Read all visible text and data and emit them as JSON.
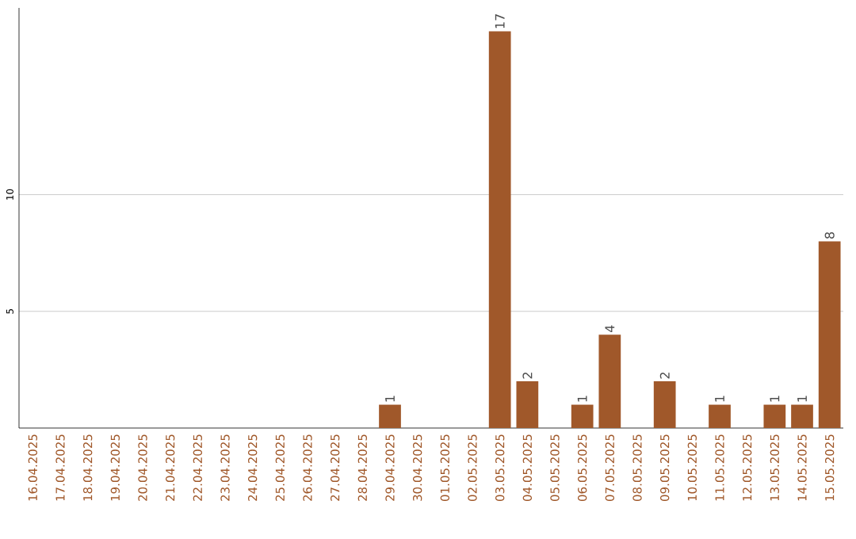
{
  "chart_data": {
    "type": "bar",
    "categories": [
      "16.04.2025",
      "17.04.2025",
      "18.04.2025",
      "19.04.2025",
      "20.04.2025",
      "21.04.2025",
      "22.04.2025",
      "23.04.2025",
      "24.04.2025",
      "25.04.2025",
      "26.04.2025",
      "27.04.2025",
      "28.04.2025",
      "29.04.2025",
      "30.04.2025",
      "01.05.2025",
      "02.05.2025",
      "03.05.2025",
      "04.05.2025",
      "05.05.2025",
      "06.05.2025",
      "07.05.2025",
      "08.05.2025",
      "09.05.2025",
      "10.05.2025",
      "11.05.2025",
      "12.05.2025",
      "13.05.2025",
      "14.05.2025",
      "15.05.2025"
    ],
    "values": [
      0,
      0,
      0,
      0,
      0,
      0,
      0,
      0,
      0,
      0,
      0,
      0,
      0,
      1,
      0,
      0,
      0,
      17,
      2,
      0,
      1,
      4,
      0,
      2,
      0,
      1,
      0,
      1,
      1,
      8
    ],
    "value_labels": [
      null,
      null,
      null,
      null,
      null,
      null,
      null,
      null,
      null,
      null,
      null,
      null,
      null,
      "1",
      null,
      null,
      null,
      "17",
      "2",
      null,
      "1",
      "4",
      null,
      "2",
      null,
      "1",
      null,
      "1",
      "1",
      "8"
    ],
    "color": "#a0582a",
    "ylim": [
      0,
      18
    ],
    "yticks": [
      5,
      10
    ],
    "grid": "y"
  }
}
